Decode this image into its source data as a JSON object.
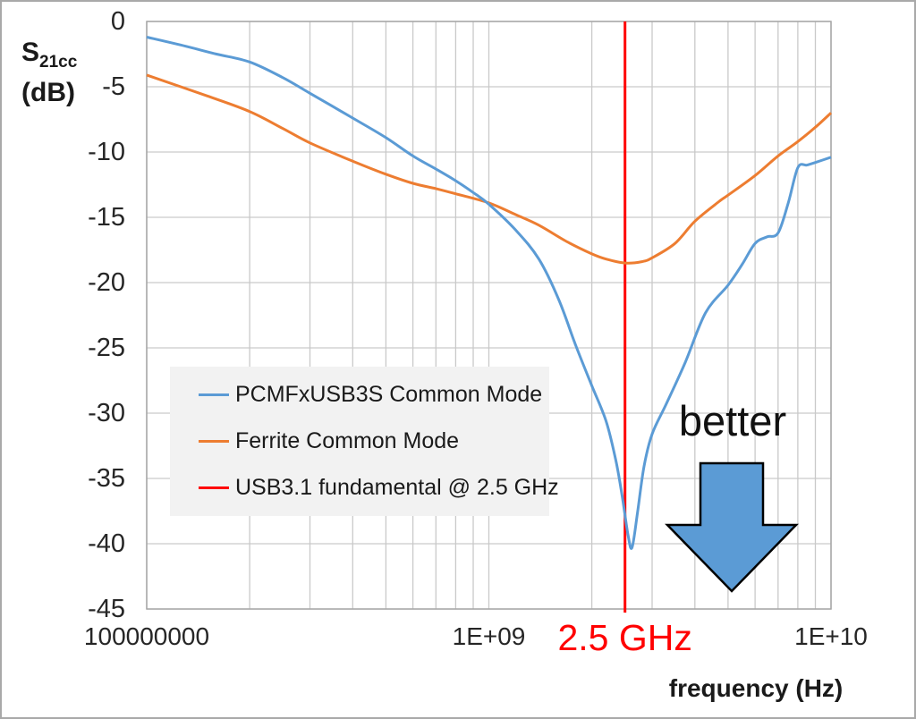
{
  "y_axis": {
    "label_main": "S",
    "label_sub": "21cc",
    "label_unit": "(dB)",
    "tick_values": [
      0,
      -5,
      -10,
      -15,
      -20,
      -25,
      -30,
      -35,
      -40,
      -45
    ]
  },
  "x_axis": {
    "title": "frequency (Hz)",
    "ticks": [
      {
        "label": "100000000",
        "f": 100000000.0
      },
      {
        "label": "1E+09",
        "f": 1000000000.0
      },
      {
        "label": "1E+10",
        "f": 10000000000.0
      }
    ],
    "highlight_tick": {
      "label": "2.5 GHz",
      "f": 2500000000.0,
      "color": "#FF0000"
    }
  },
  "legend": {
    "background": "#F2F2F2",
    "items": [
      {
        "label": "PCMFxUSB3S Common Mode",
        "color": "#5B9BD5"
      },
      {
        "label": "Ferrite Common Mode",
        "color": "#ED7D31"
      },
      {
        "label": "USB3.1 fundamental @ 2.5 GHz",
        "color": "#FF0000"
      }
    ]
  },
  "annotation": {
    "text": "better",
    "arrow_color": "#5B9BD5",
    "arrow_outline": "#000000"
  },
  "colors": {
    "grid": "#C9C9C9",
    "plot_border": "#A6A6A6"
  },
  "chart_data": {
    "type": "line",
    "title": "",
    "xlabel": "frequency (Hz)",
    "ylabel": "S21cc (dB)",
    "x_scale": "log",
    "xlim": [
      100000000.0,
      10000000000.0
    ],
    "ylim": [
      -45,
      0
    ],
    "y_tick_step": 5,
    "grid": true,
    "legend_position": "middle-left",
    "series": [
      {
        "name": "PCMFxUSB3S Common Mode",
        "color": "#5B9BD5",
        "points": [
          [
            100000000.0,
            -1.2
          ],
          [
            130000000.0,
            -1.9
          ],
          [
            160000000.0,
            -2.5
          ],
          [
            200000000.0,
            -3.1
          ],
          [
            250000000.0,
            -4.3
          ],
          [
            300000000.0,
            -5.5
          ],
          [
            400000000.0,
            -7.4
          ],
          [
            500000000.0,
            -8.9
          ],
          [
            600000000.0,
            -10.3
          ],
          [
            700000000.0,
            -11.3
          ],
          [
            800000000.0,
            -12.2
          ],
          [
            900000000.0,
            -13.1
          ],
          [
            1000000000.0,
            -14.0
          ],
          [
            1200000000.0,
            -16.0
          ],
          [
            1400000000.0,
            -18.2
          ],
          [
            1600000000.0,
            -21.3
          ],
          [
            1800000000.0,
            -24.9
          ],
          [
            2000000000.0,
            -27.9
          ],
          [
            2200000000.0,
            -30.6
          ],
          [
            2350000000.0,
            -33.6
          ],
          [
            2450000000.0,
            -36.3
          ],
          [
            2550000000.0,
            -39.3
          ],
          [
            2620000000.0,
            -40.3
          ],
          [
            2720000000.0,
            -37.6
          ],
          [
            2840000000.0,
            -34.1
          ],
          [
            3000000000.0,
            -31.6
          ],
          [
            3300000000.0,
            -29.3
          ],
          [
            3750000000.0,
            -26.1
          ],
          [
            4300000000.0,
            -22.3
          ],
          [
            5000000000.0,
            -20.2
          ],
          [
            5500000000.0,
            -18.6
          ],
          [
            6000000000.0,
            -17.0
          ],
          [
            6500000000.0,
            -16.5
          ],
          [
            7000000000.0,
            -16.2
          ],
          [
            7500000000.0,
            -13.9
          ],
          [
            8000000000.0,
            -11.2
          ],
          [
            8500000000.0,
            -11.0
          ],
          [
            9000000000.0,
            -10.8
          ],
          [
            10000000000.0,
            -10.4
          ]
        ]
      },
      {
        "name": "Ferrite Common Mode",
        "color": "#ED7D31",
        "points": [
          [
            100000000.0,
            -4.1
          ],
          [
            150000000.0,
            -5.7
          ],
          [
            200000000.0,
            -6.9
          ],
          [
            250000000.0,
            -8.2
          ],
          [
            300000000.0,
            -9.3
          ],
          [
            400000000.0,
            -10.7
          ],
          [
            500000000.0,
            -11.7
          ],
          [
            600000000.0,
            -12.4
          ],
          [
            700000000.0,
            -12.8
          ],
          [
            800000000.0,
            -13.2
          ],
          [
            1000000000.0,
            -13.9
          ],
          [
            1200000000.0,
            -14.8
          ],
          [
            1400000000.0,
            -15.6
          ],
          [
            1700000000.0,
            -16.9
          ],
          [
            2000000000.0,
            -17.8
          ],
          [
            2200000000.0,
            -18.2
          ],
          [
            2500000000.0,
            -18.5
          ],
          [
            2800000000.0,
            -18.4
          ],
          [
            3000000000.0,
            -18.1
          ],
          [
            3500000000.0,
            -17.0
          ],
          [
            4000000000.0,
            -15.3
          ],
          [
            4700000000.0,
            -13.8
          ],
          [
            5000000000.0,
            -13.3
          ],
          [
            6000000000.0,
            -11.8
          ],
          [
            7000000000.0,
            -10.3
          ],
          [
            8000000000.0,
            -9.2
          ],
          [
            9000000000.0,
            -8.1
          ],
          [
            10000000000.0,
            -7.0
          ]
        ]
      }
    ],
    "vline": {
      "label": "USB3.1 fundamental @ 2.5 GHz",
      "x": 2500000000.0,
      "color": "#FF0000"
    }
  }
}
